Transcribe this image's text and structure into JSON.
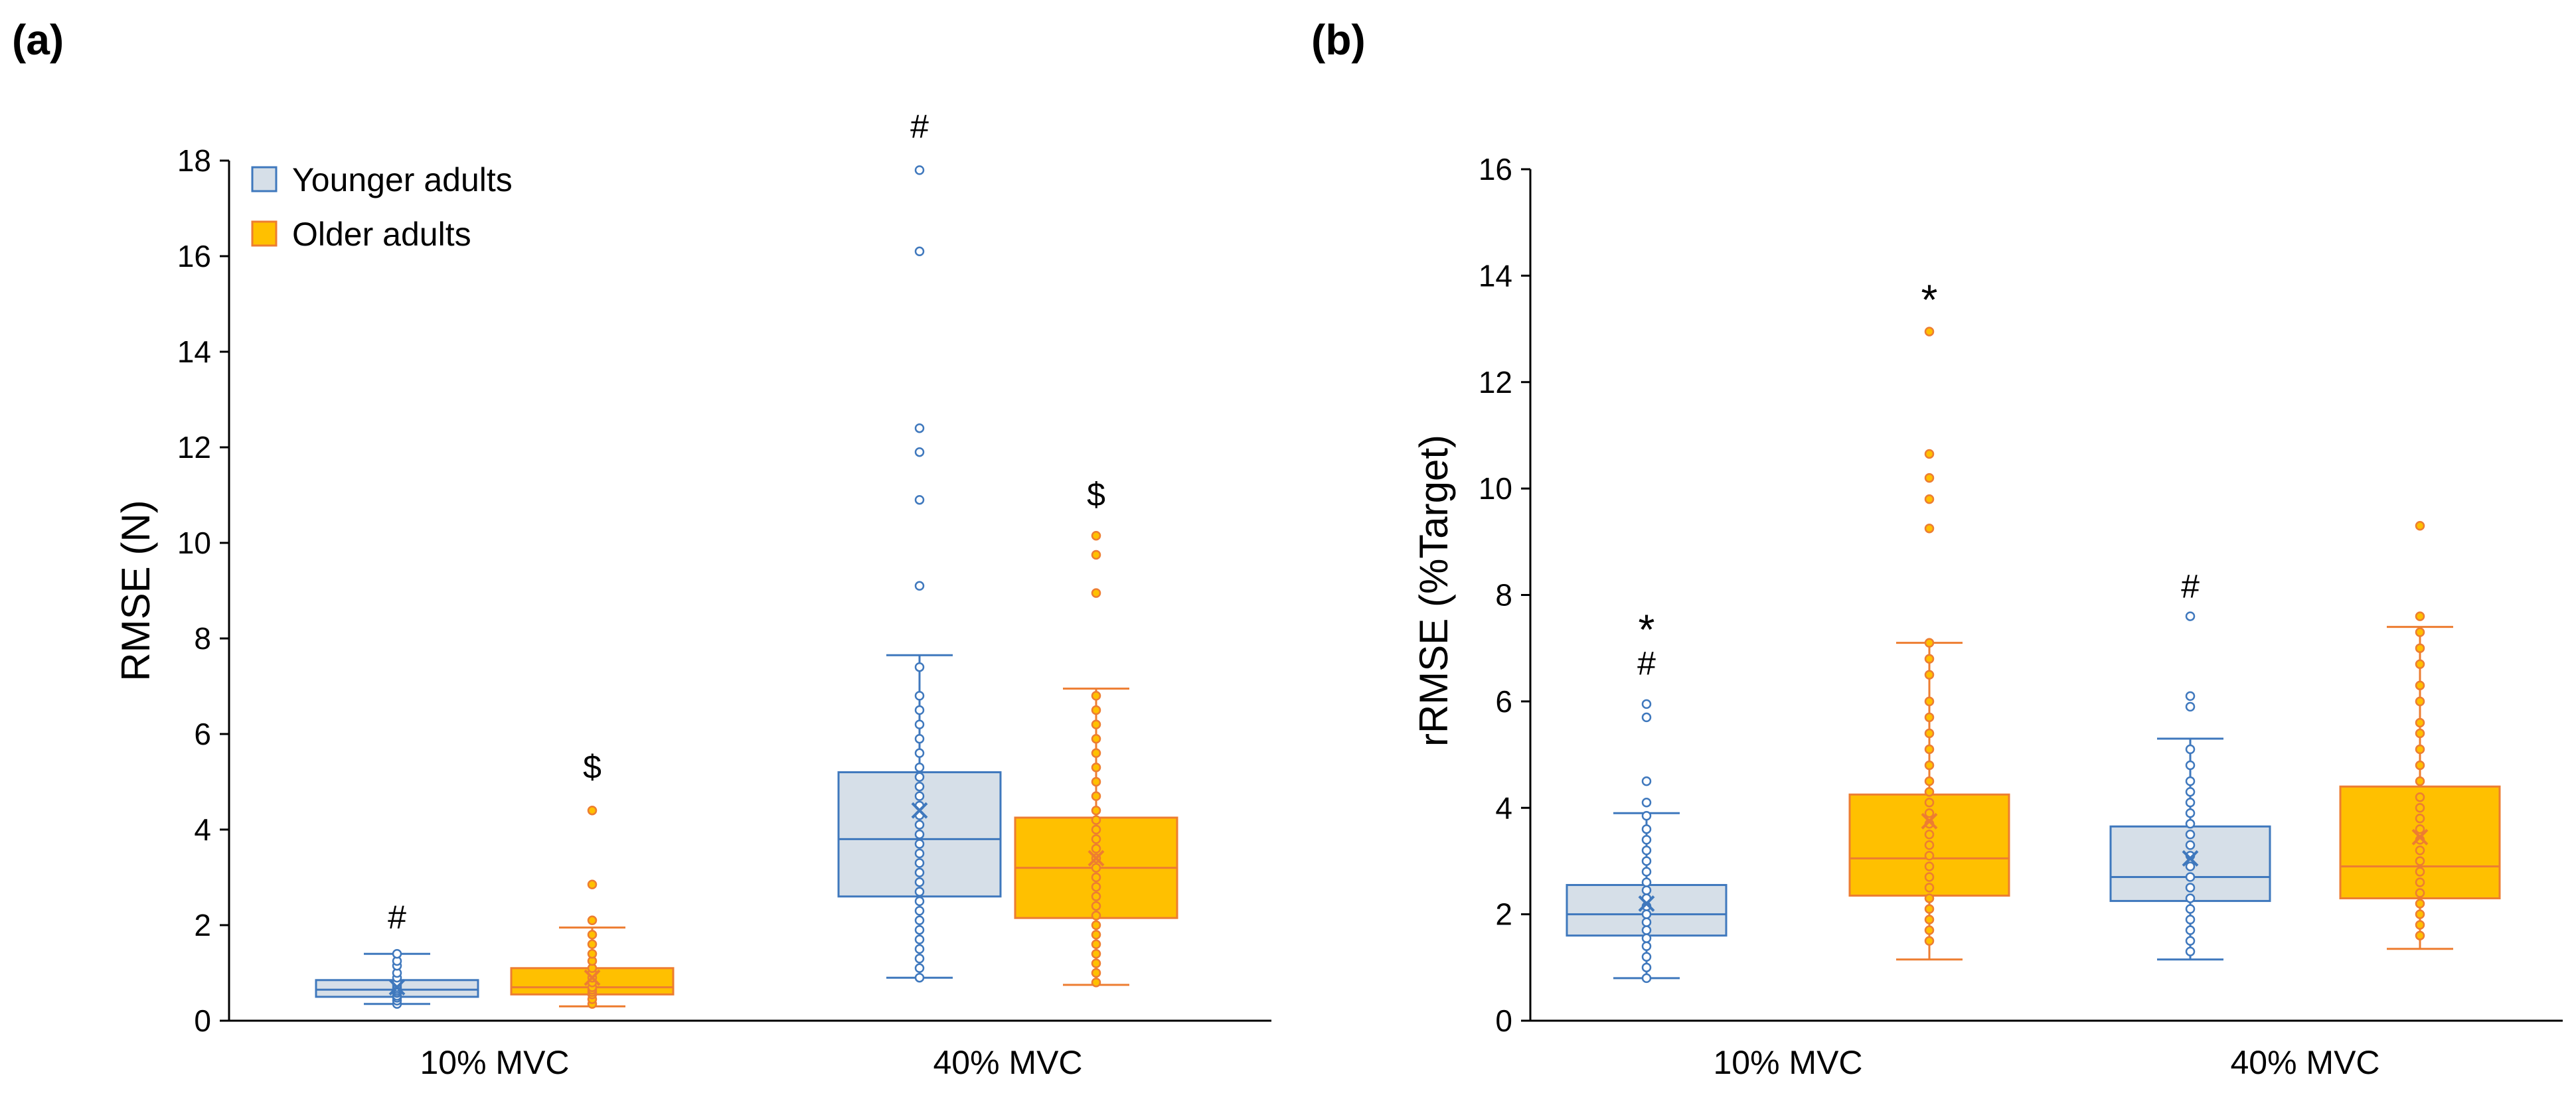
{
  "colors": {
    "younger_fill": "#d6dfe8",
    "younger_stroke": "#3f78bd",
    "older_fill": "#ffc000",
    "older_stroke": "#ed7d31",
    "axis": "#000000"
  },
  "chart_data": [
    {
      "type": "box",
      "panel_label": "(a)",
      "title": "",
      "xlabel": "",
      "ylabel": "RMSE (N)",
      "ylim": [
        0,
        18
      ],
      "yticks": [
        "0",
        "2",
        "4",
        "6",
        "8",
        "10",
        "12",
        "14",
        "16",
        "18"
      ],
      "categories": [
        "10% MVC",
        "40% MVC"
      ],
      "legend": {
        "placement": "top-left",
        "entries": [
          "Younger adults",
          "Older adults"
        ]
      },
      "series": [
        {
          "name": "Younger adults",
          "boxes": [
            {
              "category": "10% MVC",
              "whisker_low": 0.35,
              "q1": 0.5,
              "median": 0.65,
              "q3": 0.85,
              "whisker_high": 1.4,
              "mean": 0.7,
              "points": [
                0.35,
                0.42,
                0.48,
                0.52,
                0.58,
                0.62,
                0.66,
                0.7,
                0.75,
                0.8,
                0.9,
                1.0,
                1.15,
                1.25,
                1.4
              ]
            },
            {
              "category": "40% MVC",
              "whisker_low": 0.9,
              "q1": 2.6,
              "median": 3.8,
              "q3": 5.2,
              "whisker_high": 7.65,
              "mean": 4.4,
              "points": [
                0.9,
                1.1,
                1.3,
                1.5,
                1.7,
                1.9,
                2.1,
                2.3,
                2.5,
                2.7,
                2.9,
                3.1,
                3.3,
                3.5,
                3.7,
                3.9,
                4.1,
                4.3,
                4.5,
                4.7,
                4.9,
                5.1,
                5.3,
                5.6,
                5.9,
                6.2,
                6.5,
                6.8,
                7.4,
                9.1,
                10.9,
                11.9,
                12.4,
                16.1,
                17.8
              ]
            }
          ]
        },
        {
          "name": "Older adults",
          "boxes": [
            {
              "category": "10% MVC",
              "whisker_low": 0.3,
              "q1": 0.55,
              "median": 0.7,
              "q3": 1.1,
              "whisker_high": 1.95,
              "mean": 0.9,
              "points": [
                0.35,
                0.45,
                0.55,
                0.6,
                0.65,
                0.7,
                0.8,
                0.9,
                1.0,
                1.1,
                1.25,
                1.4,
                1.6,
                1.8,
                2.1,
                2.85,
                4.4
              ]
            },
            {
              "category": "40% MVC",
              "whisker_low": 0.75,
              "q1": 2.15,
              "median": 3.2,
              "q3": 4.25,
              "whisker_high": 6.95,
              "mean": 3.4,
              "points": [
                0.8,
                1.0,
                1.2,
                1.4,
                1.6,
                1.8,
                2.0,
                2.2,
                2.4,
                2.6,
                2.8,
                3.0,
                3.2,
                3.4,
                3.6,
                3.8,
                4.0,
                4.2,
                4.4,
                4.7,
                5.0,
                5.3,
                5.6,
                5.9,
                6.2,
                6.5,
                6.8,
                8.95,
                9.75,
                10.15
              ]
            }
          ]
        }
      ],
      "annotations": [
        {
          "text": "#",
          "category": "10% MVC",
          "series": "Younger adults",
          "y": 2.15
        },
        {
          "text": "$",
          "category": "10% MVC",
          "series": "Older adults",
          "y": 5.3
        },
        {
          "text": "#",
          "category": "40% MVC",
          "series": "Younger adults",
          "y": 18.7
        },
        {
          "text": "$",
          "category": "40% MVC",
          "series": "Older adults",
          "y": 11.0
        }
      ]
    },
    {
      "type": "box",
      "panel_label": "(b)",
      "title": "",
      "xlabel": "",
      "ylabel": "rRMSE (%Target)",
      "ylim": [
        0,
        16
      ],
      "yticks": [
        "0",
        "2",
        "4",
        "6",
        "8",
        "10",
        "12",
        "14",
        "16"
      ],
      "categories": [
        "10% MVC",
        "40% MVC"
      ],
      "series": [
        {
          "name": "Younger adults",
          "boxes": [
            {
              "category": "10% MVC",
              "whisker_low": 0.8,
              "q1": 1.6,
              "median": 2.0,
              "q3": 2.55,
              "whisker_high": 3.9,
              "mean": 2.2,
              "points": [
                0.8,
                1.0,
                1.2,
                1.4,
                1.55,
                1.7,
                1.85,
                2.0,
                2.15,
                2.3,
                2.45,
                2.6,
                2.8,
                3.0,
                3.2,
                3.4,
                3.6,
                3.85,
                4.1,
                4.5,
                5.7,
                5.95
              ]
            },
            {
              "category": "40% MVC",
              "whisker_low": 1.15,
              "q1": 2.25,
              "median": 2.7,
              "q3": 3.65,
              "whisker_high": 5.3,
              "mean": 3.05,
              "points": [
                1.3,
                1.5,
                1.7,
                1.9,
                2.1,
                2.3,
                2.5,
                2.7,
                2.9,
                3.1,
                3.3,
                3.5,
                3.7,
                3.9,
                4.1,
                4.3,
                4.5,
                4.8,
                5.1,
                5.9,
                6.1,
                7.6
              ]
            }
          ]
        },
        {
          "name": "Older adults",
          "boxes": [
            {
              "category": "10% MVC",
              "whisker_low": 1.15,
              "q1": 2.35,
              "median": 3.05,
              "q3": 4.25,
              "whisker_high": 7.1,
              "mean": 3.75,
              "points": [
                1.5,
                1.7,
                1.9,
                2.1,
                2.3,
                2.5,
                2.7,
                2.9,
                3.1,
                3.3,
                3.5,
                3.7,
                3.9,
                4.1,
                4.3,
                4.5,
                4.8,
                5.1,
                5.4,
                5.7,
                6.0,
                6.5,
                6.8,
                7.1,
                9.25,
                9.8,
                10.2,
                10.65,
                12.95
              ]
            },
            {
              "category": "40% MVC",
              "whisker_low": 1.35,
              "q1": 2.3,
              "median": 2.9,
              "q3": 4.4,
              "whisker_high": 7.4,
              "mean": 3.45,
              "points": [
                1.6,
                1.8,
                2.0,
                2.2,
                2.4,
                2.6,
                2.8,
                3.0,
                3.2,
                3.4,
                3.6,
                3.8,
                4.0,
                4.2,
                4.5,
                4.8,
                5.1,
                5.4,
                5.6,
                6.0,
                6.3,
                6.7,
                7.0,
                7.3,
                7.6,
                9.3
              ]
            }
          ]
        }
      ],
      "annotations": [
        {
          "text": "#",
          "category": "10% MVC",
          "series": "Younger adults",
          "y": 6.7
        },
        {
          "text": "*",
          "category": "10% MVC",
          "series": "Younger adults",
          "y": 7.5
        },
        {
          "text": "*",
          "category": "10% MVC",
          "series": "Older adults",
          "y": 13.7
        },
        {
          "text": "#",
          "category": "40% MVC",
          "series": "Younger adults",
          "y": 8.15
        }
      ]
    }
  ]
}
